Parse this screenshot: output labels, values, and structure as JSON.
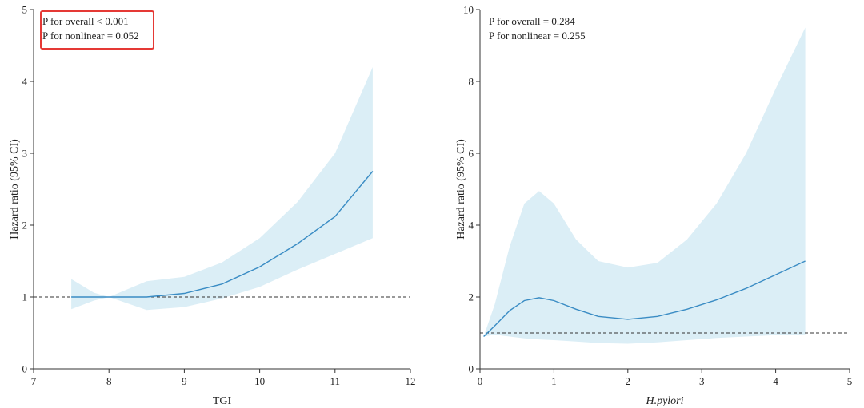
{
  "chart_data": [
    {
      "type": "line",
      "xlabel": "TGI",
      "xlabel_italic": false,
      "ylabel": "Hazard ratio (95% CI)",
      "xlim": [
        7,
        12
      ],
      "ylim": [
        0,
        5
      ],
      "xticks": [
        7,
        8,
        9,
        10,
        11,
        12
      ],
      "yticks": [
        0,
        1,
        2,
        3,
        4,
        5
      ],
      "reference_line": 1,
      "annotations": [
        "P for overall < 0.001",
        "P for nonlinear = 0.052"
      ],
      "annotation_boxed": true,
      "annotation_box_color": "#e53935",
      "line_color": "#3a8cc4",
      "band_color": "#dbeef6",
      "series": [
        {
          "x": [
            7.5,
            7.8,
            8.0,
            8.5,
            9.0,
            9.5,
            10.0,
            10.5,
            11.0,
            11.5
          ],
          "y": [
            1.0,
            1.0,
            1.0,
            1.0,
            1.05,
            1.18,
            1.42,
            1.74,
            2.12,
            2.75
          ],
          "lower": [
            0.83,
            0.95,
            1.0,
            0.82,
            0.86,
            0.98,
            1.14,
            1.38,
            1.6,
            1.82
          ],
          "upper": [
            1.25,
            1.06,
            1.0,
            1.22,
            1.28,
            1.48,
            1.82,
            2.32,
            3.0,
            4.2
          ]
        }
      ]
    },
    {
      "type": "line",
      "xlabel": "H.pylori",
      "xlabel_italic": true,
      "ylabel": "Hazard ratio (95% CI)",
      "xlim": [
        0,
        5
      ],
      "ylim": [
        0,
        10
      ],
      "xticks": [
        0,
        1,
        2,
        3,
        4,
        5
      ],
      "yticks": [
        0,
        2,
        4,
        6,
        8,
        10
      ],
      "reference_line": 1,
      "annotations": [
        "P for overall = 0.284",
        "P for nonlinear = 0.255"
      ],
      "annotation_boxed": false,
      "line_color": "#3a8cc4",
      "band_color": "#dbeef6",
      "series": [
        {
          "x": [
            0.05,
            0.2,
            0.4,
            0.6,
            0.8,
            1.0,
            1.3,
            1.6,
            2.0,
            2.4,
            2.8,
            3.2,
            3.6,
            4.0,
            4.4
          ],
          "y": [
            0.9,
            1.2,
            1.62,
            1.9,
            1.98,
            1.9,
            1.66,
            1.46,
            1.38,
            1.46,
            1.66,
            1.92,
            2.24,
            2.62,
            3.0
          ],
          "lower": [
            0.9,
            0.95,
            0.9,
            0.85,
            0.82,
            0.8,
            0.76,
            0.72,
            0.7,
            0.74,
            0.8,
            0.86,
            0.9,
            0.94,
            0.96
          ],
          "upper": [
            0.9,
            1.8,
            3.4,
            4.6,
            4.95,
            4.6,
            3.6,
            3.0,
            2.82,
            2.95,
            3.6,
            4.6,
            6.0,
            7.8,
            9.5
          ]
        }
      ]
    }
  ]
}
